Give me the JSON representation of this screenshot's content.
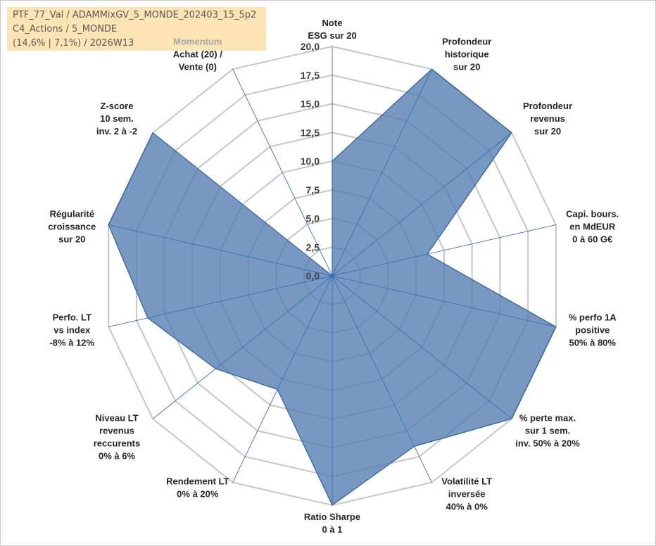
{
  "header": {
    "line1": "PTF_77_Val / ADAMMixGV_5_MONDE_202403_15_5p2",
    "line2": "C4_Actions / 5_MONDE",
    "line3": "(14,6% | 7,1%) / 2026W13"
  },
  "chart_data": {
    "type": "radar",
    "title": "",
    "rlim": [
      0,
      20
    ],
    "ticks": [
      "0,0",
      "2,5",
      "5,0",
      "7,5",
      "10,0",
      "12,5",
      "15,0",
      "17,5",
      "20,0"
    ],
    "tick_values": [
      0,
      2.5,
      5,
      7.5,
      10,
      12.5,
      15,
      17.5,
      20
    ],
    "grid": true,
    "categories": [
      {
        "lines": [
          "Note",
          "ESG sur 20"
        ]
      },
      {
        "lines": [
          "Profondeur",
          "historique",
          "sur 20"
        ]
      },
      {
        "lines": [
          "Profondeur",
          "revenus",
          "sur 20"
        ]
      },
      {
        "lines": [
          "Capi. bours.",
          "en MdEUR",
          "0 à 60 G€"
        ]
      },
      {
        "lines": [
          "% perfo 1A",
          "positive",
          "50% à 80%"
        ]
      },
      {
        "lines": [
          "% perte max.",
          "sur 1 sem.",
          "inv. 50% à 20%"
        ]
      },
      {
        "lines": [
          "Volatilité LT",
          "inversée",
          "40% à 0%"
        ]
      },
      {
        "lines": [
          "Ratio Sharpe",
          "0 à 1"
        ]
      },
      {
        "lines": [
          "Rendement LT",
          "0% à 20%"
        ]
      },
      {
        "lines": [
          "Niveau LT",
          "revenus",
          "reccurents",
          "0% à 6%"
        ]
      },
      {
        "lines": [
          "Perfo. LT",
          "vs index",
          "-8% à 12%"
        ]
      },
      {
        "lines": [
          "Régularité",
          "croissance",
          "sur 20"
        ]
      },
      {
        "lines": [
          "Z-score",
          "10 sem.",
          "inv. 2 à -2"
        ]
      },
      {
        "lines": [
          "Momentum",
          "Achat (20) /",
          "Vente (0)"
        ],
        "accent_first_line": true
      }
    ],
    "series": [
      {
        "values": [
          10,
          20,
          20,
          8.5,
          20,
          20,
          16.5,
          20,
          11,
          13,
          16.5,
          20,
          20,
          0
        ]
      }
    ],
    "colors": {
      "fill": "#4f7bb0",
      "stroke": "#2e5e9c",
      "grid": "#c6c6c6",
      "spoke": "#3a6fb5"
    }
  }
}
